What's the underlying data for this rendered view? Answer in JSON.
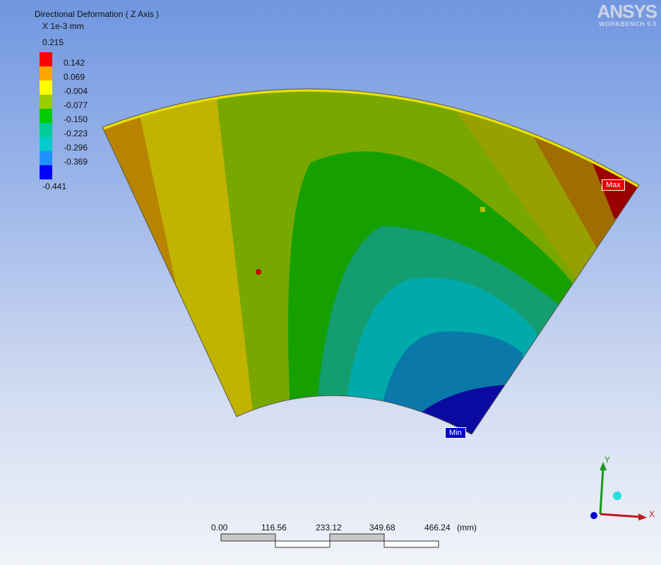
{
  "legend": {
    "title": "Directional Deformation ( Z Axis )",
    "unit": "X 1e-3 mm",
    "top_value": "0.215",
    "labels": [
      "0.142",
      "0.069",
      "-0.004",
      "-0.077",
      "-0.150",
      "-0.223",
      "-0.296",
      "-0.369"
    ],
    "min_value": "-0.441",
    "colors": [
      "#ff0000",
      "#ffa500",
      "#ffff00",
      "#9acd00",
      "#00cc00",
      "#00cc99",
      "#00cccc",
      "#1e90ff",
      "#0000ff"
    ]
  },
  "logo": {
    "name": "ANSYS",
    "subtitle": "WORKBENCH 9.0"
  },
  "probes": {
    "max_label": "Max",
    "min_label": "Min"
  },
  "scale_bar": {
    "ticks": [
      "0.00",
      "116.56",
      "233.12",
      "349.68",
      "466.24"
    ],
    "unit": "(mm)"
  },
  "triad": {
    "x_label": "X",
    "y_label": "Y"
  },
  "colors": {
    "background_top": "#7096e0",
    "background_bottom": "#f1f3f9",
    "max_tag": "#e00000",
    "min_tag": "#0000d0"
  }
}
